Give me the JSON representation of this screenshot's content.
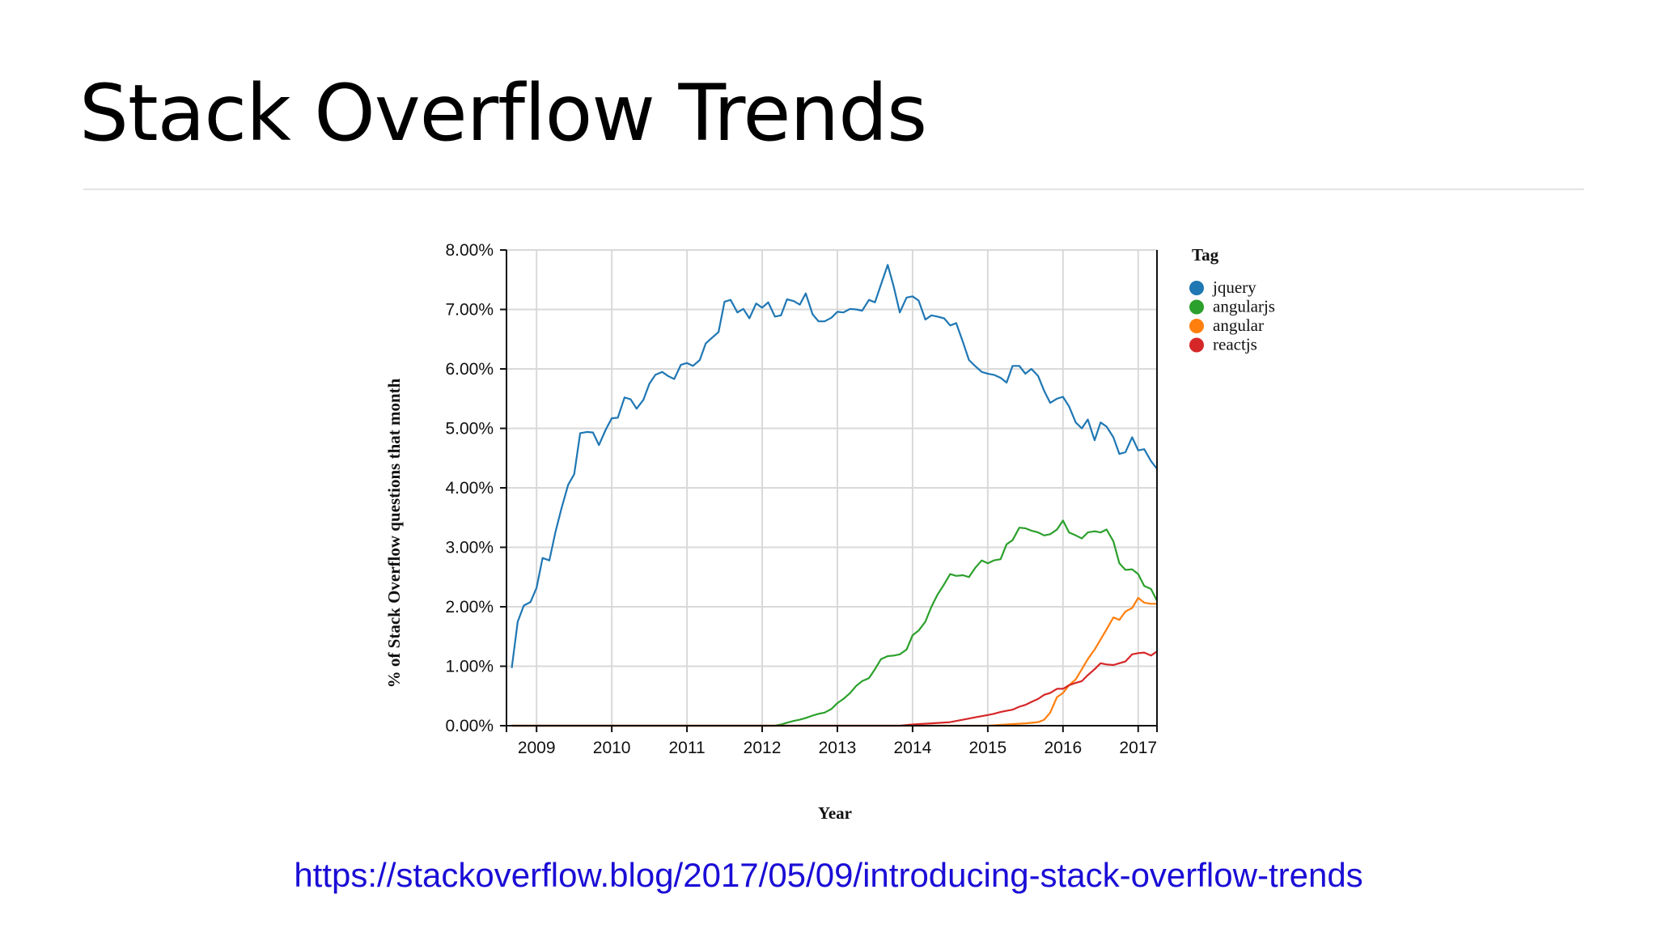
{
  "slide": {
    "title": "Stack Overflow Trends",
    "link": "https://stackoverflow.blog/2017/05/09/introducing-stack-overflow-trends"
  },
  "chart_data": {
    "type": "line",
    "title": "",
    "xlabel": "Year",
    "ylabel": "% of Stack Overflow questions that month",
    "xlim": [
      2008.6,
      2017.25
    ],
    "ylim": [
      0,
      8
    ],
    "x_ticks": [
      2009,
      2010,
      2011,
      2012,
      2013,
      2014,
      2015,
      2016,
      2017
    ],
    "x_tick_labels": [
      "2009",
      "2010",
      "2011",
      "2012",
      "2013",
      "2014",
      "2015",
      "2016",
      "2017"
    ],
    "y_ticks": [
      0,
      1,
      2,
      3,
      4,
      5,
      6,
      7,
      8
    ],
    "y_tick_labels": [
      "0.00%",
      "1.00%",
      "2.00%",
      "3.00%",
      "4.00%",
      "5.00%",
      "6.00%",
      "7.00%",
      "8.00%"
    ],
    "grid": true,
    "legend": {
      "title": "Tag",
      "placement": "right"
    },
    "series": [
      {
        "name": "jquery",
        "color": "#1f77b4",
        "points": [
          [
            2008.67,
            0.97
          ],
          [
            2008.75,
            1.75
          ],
          [
            2008.83,
            2.02
          ],
          [
            2008.92,
            2.08
          ],
          [
            2009.0,
            2.32
          ],
          [
            2009.08,
            2.82
          ],
          [
            2009.17,
            2.78
          ],
          [
            2009.25,
            3.25
          ],
          [
            2009.33,
            3.65
          ],
          [
            2009.42,
            4.05
          ],
          [
            2009.5,
            4.23
          ],
          [
            2009.58,
            4.92
          ],
          [
            2009.67,
            4.94
          ],
          [
            2009.75,
            4.93
          ],
          [
            2009.83,
            4.72
          ],
          [
            2009.92,
            4.98
          ],
          [
            2010.0,
            5.17
          ],
          [
            2010.08,
            5.18
          ],
          [
            2010.17,
            5.52
          ],
          [
            2010.25,
            5.49
          ],
          [
            2010.33,
            5.33
          ],
          [
            2010.42,
            5.48
          ],
          [
            2010.5,
            5.75
          ],
          [
            2010.58,
            5.9
          ],
          [
            2010.67,
            5.95
          ],
          [
            2010.75,
            5.88
          ],
          [
            2010.83,
            5.83
          ],
          [
            2010.92,
            6.07
          ],
          [
            2011.0,
            6.1
          ],
          [
            2011.08,
            6.05
          ],
          [
            2011.17,
            6.15
          ],
          [
            2011.25,
            6.43
          ],
          [
            2011.33,
            6.52
          ],
          [
            2011.42,
            6.62
          ],
          [
            2011.5,
            7.13
          ],
          [
            2011.58,
            7.16
          ],
          [
            2011.67,
            6.95
          ],
          [
            2011.75,
            7.01
          ],
          [
            2011.83,
            6.85
          ],
          [
            2011.92,
            7.1
          ],
          [
            2012.0,
            7.03
          ],
          [
            2012.08,
            7.12
          ],
          [
            2012.17,
            6.88
          ],
          [
            2012.25,
            6.9
          ],
          [
            2012.33,
            7.17
          ],
          [
            2012.42,
            7.14
          ],
          [
            2012.5,
            7.08
          ],
          [
            2012.58,
            7.27
          ],
          [
            2012.67,
            6.92
          ],
          [
            2012.75,
            6.8
          ],
          [
            2012.83,
            6.8
          ],
          [
            2012.92,
            6.86
          ],
          [
            2013.0,
            6.96
          ],
          [
            2013.08,
            6.95
          ],
          [
            2013.17,
            7.01
          ],
          [
            2013.25,
            7.0
          ],
          [
            2013.33,
            6.98
          ],
          [
            2013.42,
            7.16
          ],
          [
            2013.5,
            7.12
          ],
          [
            2013.58,
            7.42
          ],
          [
            2013.67,
            7.75
          ],
          [
            2013.75,
            7.38
          ],
          [
            2013.83,
            6.95
          ],
          [
            2013.92,
            7.2
          ],
          [
            2014.0,
            7.22
          ],
          [
            2014.08,
            7.15
          ],
          [
            2014.17,
            6.83
          ],
          [
            2014.25,
            6.9
          ],
          [
            2014.33,
            6.88
          ],
          [
            2014.42,
            6.85
          ],
          [
            2014.5,
            6.73
          ],
          [
            2014.58,
            6.77
          ],
          [
            2014.67,
            6.45
          ],
          [
            2014.75,
            6.15
          ],
          [
            2014.83,
            6.05
          ],
          [
            2014.92,
            5.95
          ],
          [
            2015.0,
            5.92
          ],
          [
            2015.08,
            5.9
          ],
          [
            2015.17,
            5.85
          ],
          [
            2015.25,
            5.77
          ],
          [
            2015.33,
            6.05
          ],
          [
            2015.42,
            6.05
          ],
          [
            2015.5,
            5.92
          ],
          [
            2015.58,
            6.0
          ],
          [
            2015.67,
            5.88
          ],
          [
            2015.75,
            5.63
          ],
          [
            2015.83,
            5.43
          ],
          [
            2015.92,
            5.5
          ],
          [
            2016.0,
            5.53
          ],
          [
            2016.08,
            5.37
          ],
          [
            2016.17,
            5.1
          ],
          [
            2016.25,
            5.0
          ],
          [
            2016.33,
            5.15
          ],
          [
            2016.42,
            4.8
          ],
          [
            2016.5,
            5.1
          ],
          [
            2016.58,
            5.03
          ],
          [
            2016.67,
            4.85
          ],
          [
            2016.75,
            4.57
          ],
          [
            2016.83,
            4.6
          ],
          [
            2016.92,
            4.85
          ],
          [
            2017.0,
            4.63
          ],
          [
            2017.08,
            4.65
          ],
          [
            2017.17,
            4.45
          ],
          [
            2017.25,
            4.32
          ]
        ]
      },
      {
        "name": "angularjs",
        "color": "#2ca02c",
        "points": [
          [
            2008.67,
            0.0
          ],
          [
            2012.17,
            0.0
          ],
          [
            2012.25,
            0.02
          ],
          [
            2012.33,
            0.05
          ],
          [
            2012.42,
            0.08
          ],
          [
            2012.5,
            0.1
          ],
          [
            2012.58,
            0.13
          ],
          [
            2012.67,
            0.17
          ],
          [
            2012.75,
            0.2
          ],
          [
            2012.83,
            0.22
          ],
          [
            2012.92,
            0.28
          ],
          [
            2013.0,
            0.38
          ],
          [
            2013.08,
            0.45
          ],
          [
            2013.17,
            0.55
          ],
          [
            2013.25,
            0.67
          ],
          [
            2013.33,
            0.75
          ],
          [
            2013.42,
            0.8
          ],
          [
            2013.5,
            0.95
          ],
          [
            2013.58,
            1.12
          ],
          [
            2013.67,
            1.17
          ],
          [
            2013.75,
            1.18
          ],
          [
            2013.83,
            1.2
          ],
          [
            2013.92,
            1.28
          ],
          [
            2014.0,
            1.52
          ],
          [
            2014.08,
            1.6
          ],
          [
            2014.17,
            1.75
          ],
          [
            2014.25,
            2.0
          ],
          [
            2014.33,
            2.2
          ],
          [
            2014.42,
            2.38
          ],
          [
            2014.5,
            2.55
          ],
          [
            2014.58,
            2.52
          ],
          [
            2014.67,
            2.53
          ],
          [
            2014.75,
            2.5
          ],
          [
            2014.83,
            2.65
          ],
          [
            2014.92,
            2.78
          ],
          [
            2015.0,
            2.73
          ],
          [
            2015.08,
            2.78
          ],
          [
            2015.17,
            2.8
          ],
          [
            2015.25,
            3.05
          ],
          [
            2015.33,
            3.12
          ],
          [
            2015.42,
            3.33
          ],
          [
            2015.5,
            3.32
          ],
          [
            2015.58,
            3.28
          ],
          [
            2015.67,
            3.25
          ],
          [
            2015.75,
            3.2
          ],
          [
            2015.83,
            3.22
          ],
          [
            2015.92,
            3.3
          ],
          [
            2016.0,
            3.45
          ],
          [
            2016.08,
            3.25
          ],
          [
            2016.17,
            3.2
          ],
          [
            2016.25,
            3.15
          ],
          [
            2016.33,
            3.25
          ],
          [
            2016.42,
            3.27
          ],
          [
            2016.5,
            3.25
          ],
          [
            2016.58,
            3.3
          ],
          [
            2016.67,
            3.1
          ],
          [
            2016.75,
            2.73
          ],
          [
            2016.83,
            2.62
          ],
          [
            2016.92,
            2.63
          ],
          [
            2017.0,
            2.55
          ],
          [
            2017.08,
            2.35
          ],
          [
            2017.17,
            2.3
          ],
          [
            2017.25,
            2.1
          ]
        ]
      },
      {
        "name": "angular",
        "color": "#ff7f0e",
        "points": [
          [
            2008.67,
            0.0
          ],
          [
            2015.0,
            0.0
          ],
          [
            2015.25,
            0.02
          ],
          [
            2015.5,
            0.04
          ],
          [
            2015.67,
            0.06
          ],
          [
            2015.75,
            0.1
          ],
          [
            2015.83,
            0.22
          ],
          [
            2015.92,
            0.48
          ],
          [
            2016.0,
            0.55
          ],
          [
            2016.08,
            0.68
          ],
          [
            2016.17,
            0.78
          ],
          [
            2016.25,
            0.95
          ],
          [
            2016.33,
            1.12
          ],
          [
            2016.42,
            1.28
          ],
          [
            2016.5,
            1.45
          ],
          [
            2016.58,
            1.62
          ],
          [
            2016.67,
            1.82
          ],
          [
            2016.75,
            1.78
          ],
          [
            2016.83,
            1.92
          ],
          [
            2016.92,
            1.98
          ],
          [
            2017.0,
            2.15
          ],
          [
            2017.08,
            2.07
          ],
          [
            2017.17,
            2.05
          ],
          [
            2017.25,
            2.05
          ]
        ]
      },
      {
        "name": "reactjs",
        "color": "#d62728",
        "points": [
          [
            2008.67,
            0.0
          ],
          [
            2013.83,
            0.0
          ],
          [
            2014.0,
            0.02
          ],
          [
            2014.25,
            0.04
          ],
          [
            2014.5,
            0.06
          ],
          [
            2014.67,
            0.1
          ],
          [
            2014.83,
            0.14
          ],
          [
            2015.0,
            0.18
          ],
          [
            2015.08,
            0.2
          ],
          [
            2015.17,
            0.23
          ],
          [
            2015.25,
            0.25
          ],
          [
            2015.33,
            0.27
          ],
          [
            2015.42,
            0.32
          ],
          [
            2015.5,
            0.35
          ],
          [
            2015.58,
            0.4
          ],
          [
            2015.67,
            0.45
          ],
          [
            2015.75,
            0.52
          ],
          [
            2015.83,
            0.55
          ],
          [
            2015.92,
            0.62
          ],
          [
            2016.0,
            0.62
          ],
          [
            2016.08,
            0.68
          ],
          [
            2016.17,
            0.72
          ],
          [
            2016.25,
            0.75
          ],
          [
            2016.33,
            0.85
          ],
          [
            2016.42,
            0.95
          ],
          [
            2016.5,
            1.05
          ],
          [
            2016.58,
            1.03
          ],
          [
            2016.67,
            1.02
          ],
          [
            2016.75,
            1.05
          ],
          [
            2016.83,
            1.08
          ],
          [
            2016.92,
            1.2
          ],
          [
            2017.0,
            1.22
          ],
          [
            2017.08,
            1.23
          ],
          [
            2017.17,
            1.18
          ],
          [
            2017.25,
            1.25
          ]
        ]
      }
    ]
  }
}
